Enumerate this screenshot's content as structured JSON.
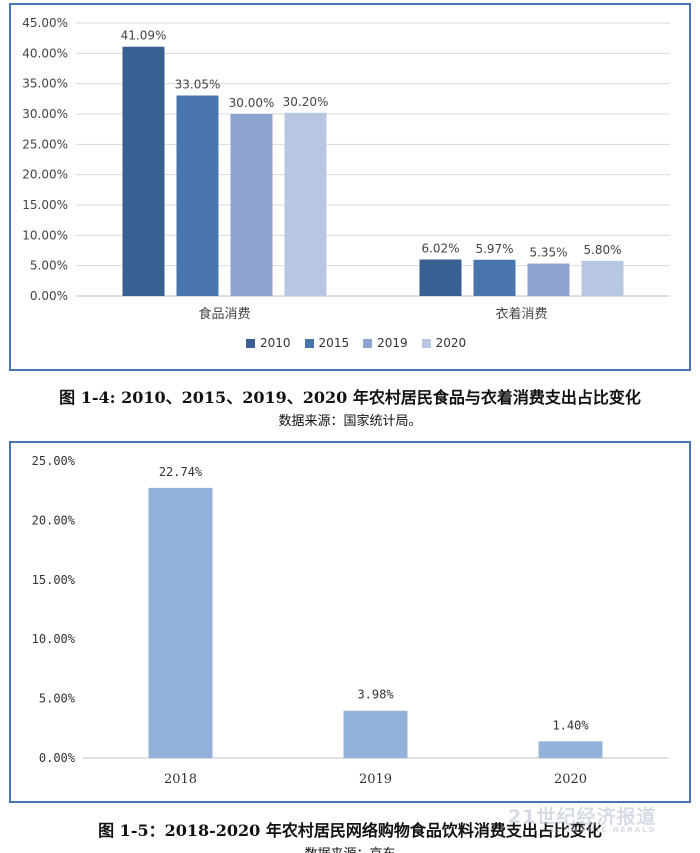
{
  "figures": [
    {
      "caption": "图 1-4: 2010、2015、2019、2020 年农村居民食品与衣着消费支出占比变化",
      "source": "数据来源：国家统计局。"
    },
    {
      "caption": "图 1-5：2018-2020 年农村居民网络购物食品饮料消费支出占比变化",
      "source": "数据来源：京东"
    }
  ],
  "watermark": {
    "text": "21世纪经济报道",
    "sub": "ECONOMIC HERALD"
  },
  "chart_data": [
    {
      "type": "bar",
      "title": "",
      "categories": [
        "食品消费",
        "衣着消费"
      ],
      "series": [
        {
          "name": "2010",
          "color": "#3a5f92",
          "values": [
            41.09,
            6.02
          ],
          "labels": [
            "41.09%",
            "6.02%"
          ]
        },
        {
          "name": "2015",
          "color": "#4a76b0",
          "values": [
            33.05,
            5.97
          ],
          "labels": [
            "33.05%",
            "5.97%"
          ]
        },
        {
          "name": "2019",
          "color": "#8ca4cf",
          "values": [
            30.0,
            5.35
          ],
          "labels": [
            "30.00%",
            "5.35%"
          ]
        },
        {
          "name": "2020",
          "color": "#b7c6e1",
          "values": [
            30.2,
            5.8
          ],
          "labels": [
            "30.20%",
            "5.80%"
          ]
        }
      ],
      "ylim": [
        0,
        45
      ],
      "yticks": [
        "0.00%",
        "5.00%",
        "10.00%",
        "15.00%",
        "20.00%",
        "25.00%",
        "30.00%",
        "35.00%",
        "40.00%",
        "45.00%"
      ],
      "grid": true,
      "legend": "bottom"
    },
    {
      "type": "bar",
      "title": "",
      "categories": [
        "2018",
        "2019",
        "2020"
      ],
      "values": [
        22.74,
        3.98,
        1.4
      ],
      "labels": [
        "22.74%",
        "3.98%",
        "1.40%"
      ],
      "color": "#94b2d9",
      "ylim": [
        0,
        25
      ],
      "yticks": [
        "0.00%",
        "5.00%",
        "10.00%",
        "15.00%",
        "20.00%",
        "25.00%"
      ],
      "grid": false,
      "legend": "none"
    }
  ]
}
